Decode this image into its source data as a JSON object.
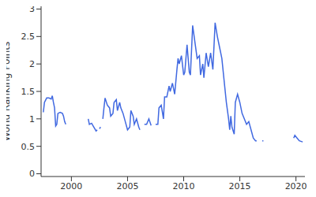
{
  "chart_data": {
    "type": "line",
    "y_label": "World Ranking Points",
    "color": "#4169e1",
    "grid": false,
    "x": [
      1997.5,
      1997.6,
      1997.8,
      1998.0,
      1998.2,
      1998.3,
      1998.4,
      1998.5,
      1998.6,
      1998.7,
      1998.8,
      1999.0,
      1999.2,
      1999.3,
      1999.4,
      1999.5,
      1999.6,
      2001.5,
      2001.6,
      2001.8,
      2002.0,
      2002.2,
      2002.3,
      2002.4,
      2002.5,
      2002.6,
      2002.7,
      2002.8,
      2002.9,
      2003.0,
      2003.2,
      2003.4,
      2003.5,
      2003.7,
      2003.8,
      2004.0,
      2004.1,
      2004.3,
      2004.4,
      2004.6,
      2004.8,
      2005.0,
      2005.2,
      2005.3,
      2005.5,
      2005.6,
      2005.8,
      2006.0,
      2006.1,
      2006.2,
      2006.5,
      2006.7,
      2006.9,
      2007.1,
      2007.2,
      2007.5,
      2007.7,
      2007.8,
      2008.0,
      2008.2,
      2008.3,
      2008.5,
      2008.7,
      2008.8,
      2009.0,
      2009.2,
      2009.4,
      2009.5,
      2009.6,
      2009.8,
      2010.0,
      2010.1,
      2010.3,
      2010.5,
      2010.6,
      2010.8,
      2011.0,
      2011.2,
      2011.4,
      2011.5,
      2011.7,
      2011.8,
      2012.0,
      2012.2,
      2012.4,
      2012.6,
      2012.8,
      2013.0,
      2013.2,
      2013.4,
      2013.6,
      2013.8,
      2014.0,
      2014.1,
      2014.2,
      2014.3,
      2014.5,
      2014.6,
      2014.8,
      2015.0,
      2015.2,
      2015.4,
      2015.6,
      2015.8,
      2016.0,
      2016.2,
      2016.4,
      2016.5,
      2016.6,
      2017.0,
      2017.1,
      2017.2,
      2019.8,
      2019.9,
      2020.1,
      2020.3,
      2020.6
    ],
    "values": [
      1.12,
      1.3,
      1.38,
      1.38,
      1.36,
      1.42,
      1.3,
      1.2,
      0.87,
      0.9,
      1.1,
      1.12,
      1.1,
      1.05,
      0.95,
      0.9,
      null,
      1.0,
      0.9,
      0.92,
      0.85,
      0.78,
      0.8,
      null,
      0.82,
      0.85,
      null,
      1.0,
      1.2,
      1.38,
      1.25,
      1.2,
      1.05,
      1.1,
      1.3,
      1.35,
      1.15,
      1.3,
      1.2,
      1.1,
      0.95,
      0.8,
      0.85,
      1.15,
      1.05,
      0.9,
      1.0,
      0.85,
      0.8,
      null,
      0.9,
      0.9,
      1.0,
      0.88,
      null,
      0.9,
      0.9,
      1.2,
      1.25,
      1.0,
      1.4,
      1.4,
      1.6,
      1.5,
      1.65,
      1.45,
      1.9,
      2.1,
      2.0,
      2.15,
      1.8,
      1.85,
      2.35,
      1.85,
      1.8,
      2.7,
      2.4,
      2.1,
      2.15,
      1.8,
      2.0,
      1.75,
      2.2,
      1.95,
      2.2,
      1.9,
      2.75,
      2.5,
      2.3,
      2.1,
      1.7,
      1.3,
      1.0,
      0.8,
      1.05,
      0.85,
      0.72,
      1.3,
      1.45,
      1.3,
      1.1,
      1.0,
      0.9,
      0.95,
      0.8,
      0.65,
      0.6,
      0.6,
      null,
      0.6,
      0.6,
      null,
      0.65,
      0.7,
      0.65,
      0.6,
      0.58
    ],
    "xlim": [
      1997.3,
      2020.8
    ],
    "ylim": [
      -0.05,
      3.05
    ],
    "xticks": [
      2000,
      2005,
      2010,
      2015,
      2020
    ],
    "yticks": [
      0,
      0.5,
      1,
      1.5,
      2,
      2.5,
      3
    ]
  }
}
